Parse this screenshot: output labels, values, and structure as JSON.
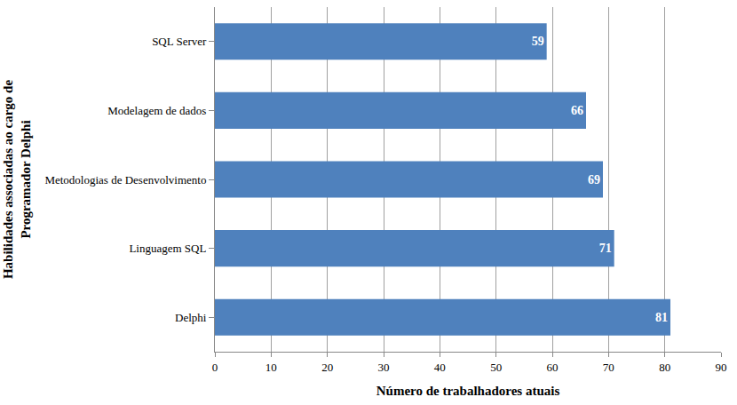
{
  "chart_data": {
    "type": "bar",
    "orientation": "horizontal",
    "xlabel": "Número de trabalhadores atuais",
    "ylabel": "Habilidades associadas ao cargo de\nProgramador Delphi",
    "categories": [
      "SQL Server",
      "Modelagem de dados",
      "Metodologias de Desenvolvimento",
      "Linguagem SQL",
      "Delphi"
    ],
    "values": [
      59,
      66,
      69,
      71,
      81
    ],
    "color": "#4f81bd",
    "xlim": [
      0,
      90
    ],
    "xticks": [
      0,
      10,
      20,
      30,
      40,
      50,
      60,
      70,
      80,
      90
    ],
    "grid": true,
    "data_labels": true
  }
}
